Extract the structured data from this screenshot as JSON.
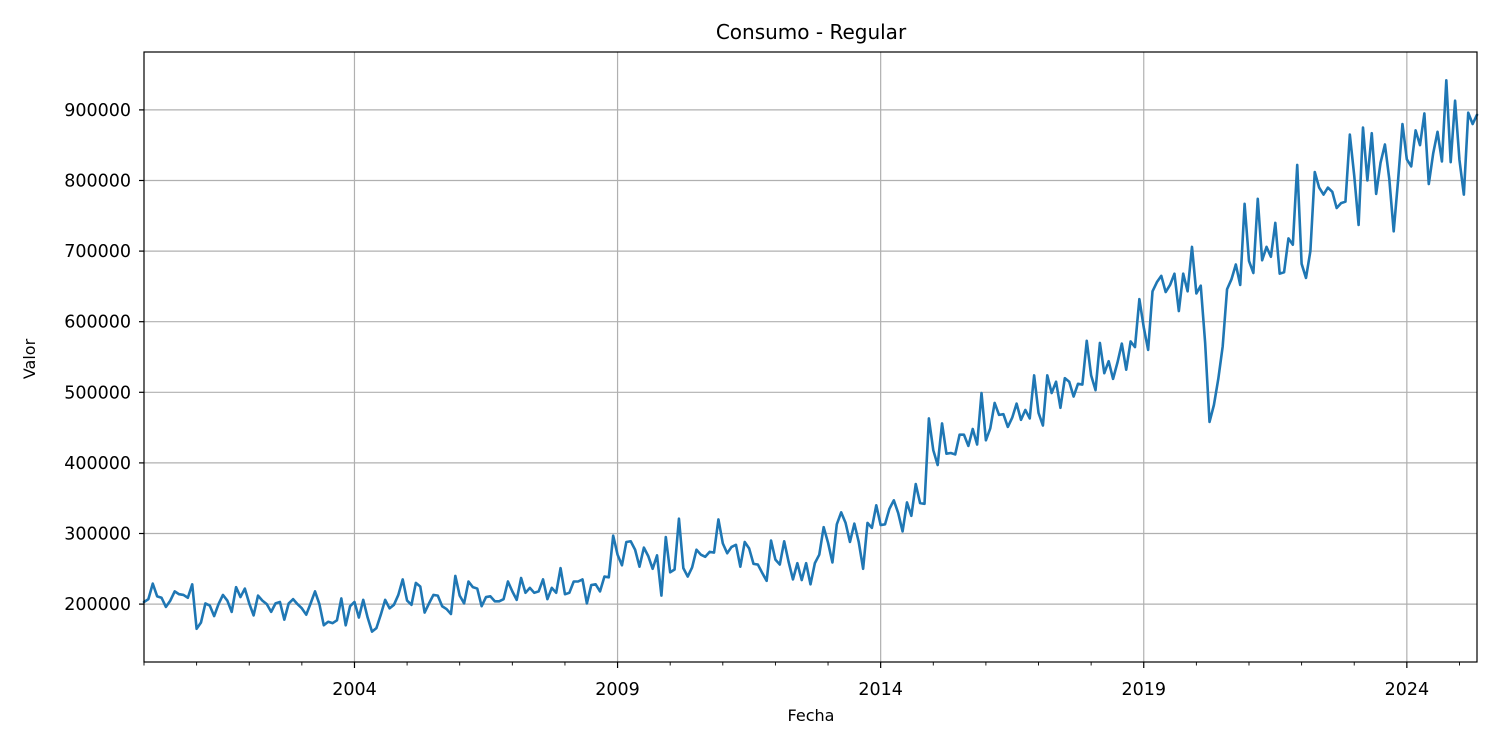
{
  "chart_data": {
    "type": "line",
    "title": "Consumo - Regular",
    "xlabel": "Fecha",
    "ylabel": "Valor",
    "grid": true,
    "legend": "none",
    "xlim": [
      "2000-01",
      "2025-05"
    ],
    "ylim": [
      118000,
      982000
    ],
    "x_ticks": [
      "2004",
      "2009",
      "2014",
      "2019",
      "2024"
    ],
    "y_ticks": [
      200000,
      300000,
      400000,
      500000,
      600000,
      700000,
      800000,
      900000
    ],
    "y_tick_labels": [
      "200000",
      "300000",
      "400000",
      "500000",
      "600000",
      "700000",
      "800000",
      "900000"
    ],
    "series": [
      {
        "color": "#1f77b4",
        "x": [
          "2000-01",
          "2000-02",
          "2000-03",
          "2000-04",
          "2000-05",
          "2000-06",
          "2000-07",
          "2000-08",
          "2000-09",
          "2000-10",
          "2000-11",
          "2000-12",
          "2001-01",
          "2001-02",
          "2001-03",
          "2001-04",
          "2001-05",
          "2001-06",
          "2001-07",
          "2001-08",
          "2001-09",
          "2001-10",
          "2001-11",
          "2001-12",
          "2002-01",
          "2002-02",
          "2002-03",
          "2002-04",
          "2002-05",
          "2002-06",
          "2002-07",
          "2002-08",
          "2002-09",
          "2002-10",
          "2002-11",
          "2002-12",
          "2003-01",
          "2003-02",
          "2003-03",
          "2003-04",
          "2003-05",
          "2003-06",
          "2003-07",
          "2003-08",
          "2003-09",
          "2003-10",
          "2003-11",
          "2003-12",
          "2004-01",
          "2004-02",
          "2004-03",
          "2004-04",
          "2004-05",
          "2004-06",
          "2004-07",
          "2004-08",
          "2004-09",
          "2004-10",
          "2004-11",
          "2004-12",
          "2005-01",
          "2005-02",
          "2005-03",
          "2005-04",
          "2005-05",
          "2005-06",
          "2005-07",
          "2005-08",
          "2005-09",
          "2005-10",
          "2005-11",
          "2005-12",
          "2006-01",
          "2006-02",
          "2006-03",
          "2006-04",
          "2006-05",
          "2006-06",
          "2006-07",
          "2006-08",
          "2006-09",
          "2006-10",
          "2006-11",
          "2006-12",
          "2007-01",
          "2007-02",
          "2007-03",
          "2007-04",
          "2007-05",
          "2007-06",
          "2007-07",
          "2007-08",
          "2007-09",
          "2007-10",
          "2007-11",
          "2007-12",
          "2008-01",
          "2008-02",
          "2008-03",
          "2008-04",
          "2008-05",
          "2008-06",
          "2008-07",
          "2008-08",
          "2008-09",
          "2008-10",
          "2008-11",
          "2008-12",
          "2009-01",
          "2009-02",
          "2009-03",
          "2009-04",
          "2009-05",
          "2009-06",
          "2009-07",
          "2009-08",
          "2009-09",
          "2009-10",
          "2009-11",
          "2009-12",
          "2010-01",
          "2010-02",
          "2010-03",
          "2010-04",
          "2010-05",
          "2010-06",
          "2010-07",
          "2010-08",
          "2010-09",
          "2010-10",
          "2010-11",
          "2010-12",
          "2011-01",
          "2011-02",
          "2011-03",
          "2011-04",
          "2011-05",
          "2011-06",
          "2011-07",
          "2011-08",
          "2011-09",
          "2011-10",
          "2011-11",
          "2011-12",
          "2012-01",
          "2012-02",
          "2012-03",
          "2012-04",
          "2012-05",
          "2012-06",
          "2012-07",
          "2012-08",
          "2012-09",
          "2012-10",
          "2012-11",
          "2012-12",
          "2013-01",
          "2013-02",
          "2013-03",
          "2013-04",
          "2013-05",
          "2013-06",
          "2013-07",
          "2013-08",
          "2013-09",
          "2013-10",
          "2013-11",
          "2013-12",
          "2014-01",
          "2014-02",
          "2014-03",
          "2014-04",
          "2014-05",
          "2014-06",
          "2014-07",
          "2014-08",
          "2014-09",
          "2014-10",
          "2014-11",
          "2014-12",
          "2015-01",
          "2015-02",
          "2015-03",
          "2015-04",
          "2015-05",
          "2015-06",
          "2015-07",
          "2015-08",
          "2015-09",
          "2015-10",
          "2015-11",
          "2015-12",
          "2016-01",
          "2016-02",
          "2016-03",
          "2016-04",
          "2016-05",
          "2016-06",
          "2016-07",
          "2016-08",
          "2016-09",
          "2016-10",
          "2016-11",
          "2016-12",
          "2017-01",
          "2017-02",
          "2017-03",
          "2017-04",
          "2017-05",
          "2017-06",
          "2017-07",
          "2017-08",
          "2017-09",
          "2017-10",
          "2017-11",
          "2017-12",
          "2018-01",
          "2018-02",
          "2018-03",
          "2018-04",
          "2018-05",
          "2018-06",
          "2018-07",
          "2018-08",
          "2018-09",
          "2018-10",
          "2018-11",
          "2018-12",
          "2019-01",
          "2019-02",
          "2019-03",
          "2019-04",
          "2019-05",
          "2019-06",
          "2019-07",
          "2019-08",
          "2019-09",
          "2019-10",
          "2019-11",
          "2019-12",
          "2020-01",
          "2020-02",
          "2020-03",
          "2020-04",
          "2020-05",
          "2020-06",
          "2020-07",
          "2020-08",
          "2020-09",
          "2020-10",
          "2020-11",
          "2020-12",
          "2021-01",
          "2021-02",
          "2021-03",
          "2021-04",
          "2021-05",
          "2021-06",
          "2021-07",
          "2021-08",
          "2021-09",
          "2021-10",
          "2021-11",
          "2021-12",
          "2022-01",
          "2022-02",
          "2022-03",
          "2022-04",
          "2022-05",
          "2022-06",
          "2022-07",
          "2022-08",
          "2022-09",
          "2022-10",
          "2022-11",
          "2022-12",
          "2023-01",
          "2023-02",
          "2023-03",
          "2023-04",
          "2023-05",
          "2023-06",
          "2023-07",
          "2023-08",
          "2023-09",
          "2023-10",
          "2023-11",
          "2023-12",
          "2024-01",
          "2024-02",
          "2024-03",
          "2024-04",
          "2024-05",
          "2024-06",
          "2024-07",
          "2024-08",
          "2024-09",
          "2024-10",
          "2024-11",
          "2024-12",
          "2025-01",
          "2025-02",
          "2025-03",
          "2025-04",
          "2025-05"
        ],
        "values": [
          203000,
          207000,
          229000,
          211000,
          209000,
          196000,
          205000,
          218000,
          214000,
          213000,
          209000,
          228000,
          165000,
          174000,
          201000,
          198000,
          183000,
          200000,
          213000,
          205000,
          189000,
          224000,
          210000,
          222000,
          201000,
          184000,
          212000,
          205000,
          200000,
          189000,
          201000,
          203000,
          178000,
          201000,
          207000,
          200000,
          194000,
          185000,
          201000,
          218000,
          200000,
          170000,
          175000,
          173000,
          177000,
          208000,
          170000,
          197000,
          203000,
          181000,
          206000,
          181000,
          161000,
          166000,
          185000,
          206000,
          194000,
          199000,
          213000,
          235000,
          205000,
          199000,
          230000,
          225000,
          188000,
          201000,
          213000,
          212000,
          197000,
          193000,
          186000,
          240000,
          212000,
          201000,
          232000,
          224000,
          222000,
          197000,
          210000,
          211000,
          204000,
          204000,
          207000,
          232000,
          218000,
          206000,
          237000,
          216000,
          223000,
          216000,
          218000,
          235000,
          207000,
          223000,
          216000,
          251000,
          214000,
          216000,
          232000,
          232000,
          235000,
          201000,
          227000,
          228000,
          218000,
          239000,
          238000,
          297000,
          270000,
          255000,
          288000,
          289000,
          277000,
          253000,
          280000,
          268000,
          250000,
          269000,
          212000,
          295000,
          245000,
          249000,
          321000,
          251000,
          239000,
          252000,
          277000,
          270000,
          267000,
          274000,
          273000,
          320000,
          286000,
          272000,
          281000,
          284000,
          253000,
          288000,
          279000,
          257000,
          256000,
          244000,
          233000,
          290000,
          263000,
          256000,
          289000,
          260000,
          235000,
          258000,
          234000,
          258000,
          228000,
          258000,
          270000,
          309000,
          287000,
          259000,
          313000,
          330000,
          315000,
          288000,
          314000,
          288000,
          250000,
          315000,
          308000,
          340000,
          312000,
          313000,
          335000,
          347000,
          329000,
          303000,
          344000,
          325000,
          370000,
          343000,
          342000,
          463000,
          418000,
          397000,
          456000,
          413000,
          414000,
          412000,
          440000,
          440000,
          424000,
          448000,
          426000,
          499000,
          432000,
          449000,
          485000,
          468000,
          469000,
          451000,
          464000,
          484000,
          461000,
          475000,
          463000,
          524000,
          471000,
          453000,
          524000,
          499000,
          515000,
          478000,
          520000,
          515000,
          494000,
          512000,
          511000,
          573000,
          524000,
          503000,
          570000,
          527000,
          544000,
          519000,
          542000,
          569000,
          532000,
          572000,
          564000,
          632000,
          592000,
          560000,
          643000,
          656000,
          665000,
          642000,
          652000,
          668000,
          615000,
          668000,
          643000,
          706000,
          640000,
          651000,
          570000,
          458000,
          482000,
          519000,
          565000,
          646000,
          660000,
          681000,
          652000,
          767000,
          686000,
          669000,
          774000,
          687000,
          706000,
          692000,
          740000,
          668000,
          670000,
          718000,
          709000,
          822000,
          682000,
          662000,
          700000,
          812000,
          790000,
          780000,
          790000,
          784000,
          761000,
          768000,
          770000,
          865000,
          807000,
          737000,
          875000,
          800000,
          867000,
          781000,
          825000,
          851000,
          802000,
          728000,
          800000,
          880000,
          830000,
          820000,
          871000,
          850000,
          895000,
          795000,
          838000,
          869000,
          827000,
          942000,
          826000,
          913000,
          829000,
          780000,
          896000,
          880000,
          893000
        ]
      }
    ]
  }
}
